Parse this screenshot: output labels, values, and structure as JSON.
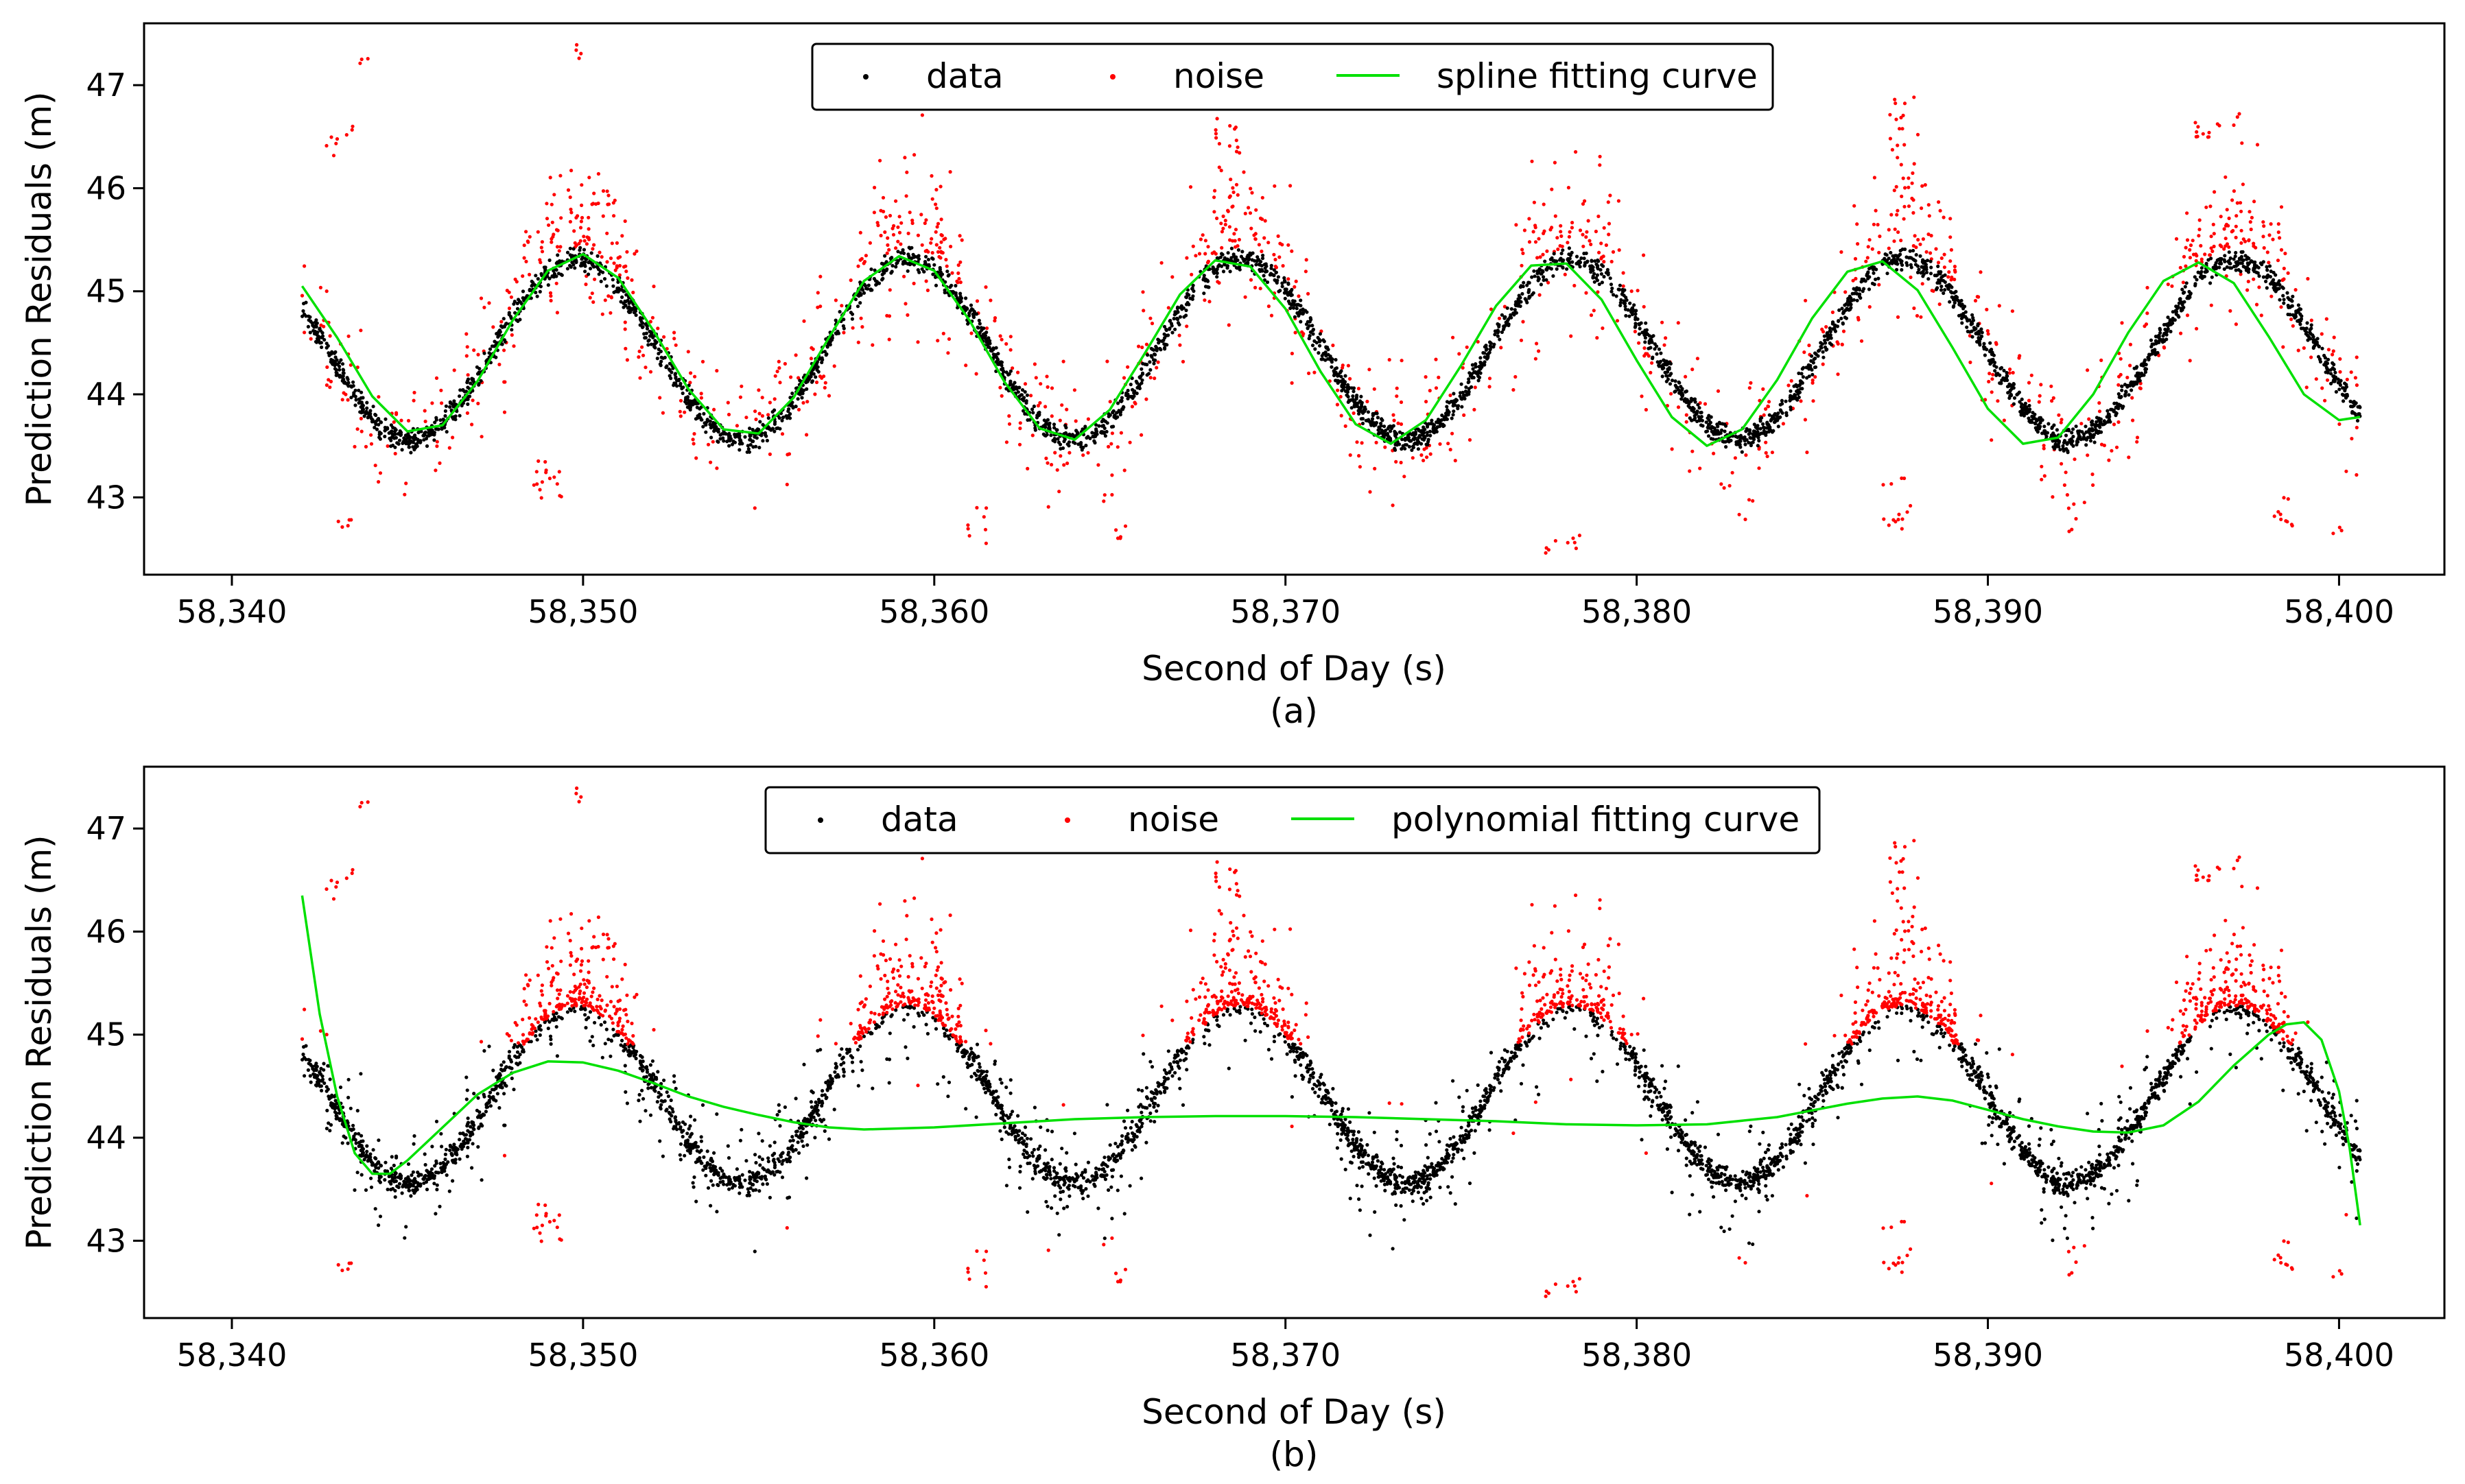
{
  "chart_data": [
    {
      "type": "scatter",
      "panel_label": "(a)",
      "xlabel": "Second of Day (s)",
      "ylabel": "Prediction Residuals (m)",
      "xlim": [
        58337.5,
        58403
      ],
      "ylim": [
        42.25,
        47.6
      ],
      "xticks": [
        58340,
        58350,
        58360,
        58370,
        58380,
        58390,
        58400
      ],
      "xtick_labels": [
        "58,340",
        "58,350",
        "58,360",
        "58,370",
        "58,380",
        "58,390",
        "58,400"
      ],
      "yticks": [
        43,
        44,
        45,
        46,
        47
      ],
      "ytick_labels": [
        "43",
        "44",
        "45",
        "46",
        "47"
      ],
      "legend_position": "top-center",
      "series": [
        {
          "name": "data",
          "kind": "scatter",
          "color": "#000000"
        },
        {
          "name": "noise",
          "kind": "scatter",
          "color": "#ff0000"
        },
        {
          "name": "spline fitting curve",
          "kind": "line",
          "color": "#00e000"
        }
      ],
      "signal": {
        "x_start": 58342,
        "x_end": 58400.6,
        "mean": 44.43,
        "amplitude": 0.87,
        "period": 9.45,
        "peak_at": 58349.8
      },
      "curve": {
        "x": [
          58342,
          58343,
          58344,
          58345,
          58346,
          58347,
          58348,
          58349,
          58350,
          58351,
          58352,
          58353,
          58354,
          58355,
          58356,
          58357,
          58358,
          58359,
          58360,
          58361,
          58362,
          58363,
          58364,
          58365,
          58366,
          58367,
          58368,
          58369,
          58370,
          58371,
          58372,
          58373,
          58374,
          58375,
          58376,
          58377,
          58378,
          58379,
          58380,
          58381,
          58382,
          58383,
          58384,
          58385,
          58386,
          58387,
          58388,
          58389,
          58390,
          58391,
          58392,
          58393,
          58394,
          58395,
          58396,
          58397,
          58398,
          58399,
          58400,
          58400.6
        ],
        "y": [
          45.05,
          44.55,
          43.98,
          43.64,
          43.7,
          44.13,
          44.72,
          45.2,
          45.36,
          45.13,
          44.62,
          44.05,
          43.66,
          43.62,
          43.97,
          44.55,
          45.1,
          45.34,
          45.2,
          44.72,
          44.12,
          43.67,
          43.56,
          43.85,
          44.4,
          44.97,
          45.3,
          45.24,
          44.83,
          44.22,
          43.71,
          43.52,
          43.75,
          44.28,
          44.86,
          45.25,
          45.27,
          44.92,
          44.33,
          43.78,
          43.5,
          43.66,
          44.14,
          44.74,
          45.19,
          45.29,
          45.01,
          44.45,
          43.86,
          43.52,
          43.58,
          44.0,
          44.6,
          45.1,
          45.28,
          45.08,
          44.56,
          44.0,
          43.75,
          43.78
        ]
      },
      "noise_clusters": [
        {
          "x_range": [
            58342.6,
            58343.0
          ],
          "y_range": [
            46.3,
            46.5
          ],
          "count": 5
        },
        {
          "x_range": [
            58343.2,
            58343.5
          ],
          "y_range": [
            46.5,
            46.7
          ],
          "count": 3
        },
        {
          "x_range": [
            58343.6,
            58343.9
          ],
          "y_range": [
            47.2,
            47.3
          ],
          "count": 3
        },
        {
          "x_range": [
            58342.9,
            58343.4
          ],
          "y_range": [
            42.65,
            42.8
          ],
          "count": 5
        },
        {
          "x_range": [
            58349.8,
            58350.0
          ],
          "y_range": [
            47.25,
            47.4
          ],
          "count": 4
        },
        {
          "x_range": [
            58348.6,
            58349.4
          ],
          "y_range": [
            42.9,
            43.4
          ],
          "count": 16
        },
        {
          "x_range": [
            58368.0,
            58368.7
          ],
          "y_range": [
            45.7,
            46.9
          ],
          "count": 25
        },
        {
          "x_range": [
            58387.2,
            58387.9
          ],
          "y_range": [
            45.8,
            46.9
          ],
          "count": 22
        },
        {
          "x_range": [
            58387.0,
            58387.8
          ],
          "y_range": [
            42.6,
            43.2
          ],
          "count": 14
        },
        {
          "x_range": [
            58395.9,
            58396.6
          ],
          "y_range": [
            46.45,
            46.7
          ],
          "count": 10
        },
        {
          "x_range": [
            58397.0,
            58397.3
          ],
          "y_range": [
            46.6,
            46.75
          ],
          "count": 3
        },
        {
          "x_range": [
            58398.1,
            58398.7
          ],
          "y_range": [
            42.7,
            43.0
          ],
          "count": 10
        },
        {
          "x_range": [
            58360.9,
            58361.5
          ],
          "y_range": [
            42.55,
            42.95
          ],
          "count": 8
        },
        {
          "x_range": [
            58365.1,
            58365.6
          ],
          "y_range": [
            42.5,
            42.75
          ],
          "count": 5
        },
        {
          "x_range": [
            58377.4,
            58378.4
          ],
          "y_range": [
            42.45,
            42.65
          ],
          "count": 9
        },
        {
          "x_range": [
            58392.3,
            58392.8
          ],
          "y_range": [
            42.6,
            43.0
          ],
          "count": 6
        },
        {
          "x_range": [
            58399.8,
            58400.1
          ],
          "y_range": [
            42.6,
            42.8
          ],
          "count": 3
        }
      ]
    },
    {
      "type": "scatter",
      "panel_label": "(b)",
      "xlabel": "Second of Day (s)",
      "ylabel": "Prediction Residuals (m)",
      "xlim": [
        58337.5,
        58403
      ],
      "ylim": [
        42.25,
        47.6
      ],
      "xticks": [
        58340,
        58350,
        58360,
        58370,
        58380,
        58390,
        58400
      ],
      "xtick_labels": [
        "58,340",
        "58,350",
        "58,360",
        "58,370",
        "58,380",
        "58,390",
        "58,400"
      ],
      "yticks": [
        43,
        44,
        45,
        46,
        47
      ],
      "ytick_labels": [
        "43",
        "44",
        "45",
        "46",
        "47"
      ],
      "legend_position": "top-center",
      "series": [
        {
          "name": "data",
          "kind": "scatter",
          "color": "#000000"
        },
        {
          "name": "noise",
          "kind": "scatter",
          "color": "#ff0000"
        },
        {
          "name": "polynomial fitting curve",
          "kind": "line",
          "color": "#00e000"
        }
      ],
      "signal": {
        "x_start": 58342,
        "x_end": 58400.6,
        "mean": 44.43,
        "amplitude": 0.87,
        "period": 9.45,
        "peak_at": 58349.8
      },
      "curve": {
        "x": [
          58342,
          58342.5,
          58343,
          58343.5,
          58344,
          58344.5,
          58345,
          58346,
          58347,
          58348,
          58349,
          58350,
          58351,
          58352,
          58353,
          58354,
          58355,
          58356,
          58357,
          58358,
          58360,
          58362,
          58364,
          58366,
          58368,
          58370,
          58372,
          58374,
          58376,
          58378,
          58380,
          58382,
          58384,
          58386,
          58387,
          58388,
          58389,
          58390,
          58391,
          58392,
          58393,
          58394,
          58395,
          58396,
          58397,
          58398,
          58398.5,
          58399,
          58399.5,
          58400,
          58400.3,
          58400.6
        ],
        "y": [
          46.35,
          45.2,
          44.4,
          43.85,
          43.65,
          43.65,
          43.78,
          44.1,
          44.42,
          44.63,
          44.74,
          44.73,
          44.65,
          44.53,
          44.4,
          44.3,
          44.22,
          44.15,
          44.1,
          44.08,
          44.1,
          44.14,
          44.18,
          44.2,
          44.21,
          44.21,
          44.2,
          44.18,
          44.16,
          44.13,
          44.12,
          44.13,
          44.2,
          44.33,
          44.38,
          44.4,
          44.36,
          44.27,
          44.18,
          44.11,
          44.06,
          44.05,
          44.12,
          44.35,
          44.7,
          45.0,
          45.1,
          45.12,
          44.95,
          44.45,
          43.9,
          43.15
        ]
      },
      "noise_clusters": [
        {
          "x_range": [
            58342.6,
            58343.0
          ],
          "y_range": [
            46.3,
            46.5
          ],
          "count": 5
        },
        {
          "x_range": [
            58343.2,
            58343.5
          ],
          "y_range": [
            46.5,
            46.7
          ],
          "count": 3
        },
        {
          "x_range": [
            58343.6,
            58343.9
          ],
          "y_range": [
            47.2,
            47.3
          ],
          "count": 3
        },
        {
          "x_range": [
            58342.9,
            58343.4
          ],
          "y_range": [
            42.65,
            42.8
          ],
          "count": 5
        },
        {
          "x_range": [
            58349.8,
            58350.0
          ],
          "y_range": [
            47.25,
            47.4
          ],
          "count": 4
        },
        {
          "x_range": [
            58348.6,
            58349.4
          ],
          "y_range": [
            42.9,
            43.4
          ],
          "count": 16
        },
        {
          "x_range": [
            58368.0,
            58368.7
          ],
          "y_range": [
            45.7,
            46.9
          ],
          "count": 25
        },
        {
          "x_range": [
            58387.2,
            58387.9
          ],
          "y_range": [
            45.8,
            46.9
          ],
          "count": 22
        },
        {
          "x_range": [
            58387.0,
            58387.8
          ],
          "y_range": [
            42.6,
            43.2
          ],
          "count": 14
        },
        {
          "x_range": [
            58395.9,
            58396.6
          ],
          "y_range": [
            46.45,
            46.7
          ],
          "count": 10
        },
        {
          "x_range": [
            58397.0,
            58397.3
          ],
          "y_range": [
            46.6,
            46.75
          ],
          "count": 3
        },
        {
          "x_range": [
            58398.1,
            58398.7
          ],
          "y_range": [
            42.7,
            43.0
          ],
          "count": 10
        },
        {
          "x_range": [
            58360.9,
            58361.5
          ],
          "y_range": [
            42.55,
            42.95
          ],
          "count": 8
        },
        {
          "x_range": [
            58365.1,
            58365.6
          ],
          "y_range": [
            42.5,
            42.75
          ],
          "count": 5
        },
        {
          "x_range": [
            58377.4,
            58378.4
          ],
          "y_range": [
            42.45,
            42.65
          ],
          "count": 9
        },
        {
          "x_range": [
            58392.3,
            58392.8
          ],
          "y_range": [
            42.6,
            43.0
          ],
          "count": 6
        },
        {
          "x_range": [
            58399.8,
            58400.1
          ],
          "y_range": [
            42.6,
            42.8
          ],
          "count": 3
        }
      ]
    }
  ]
}
